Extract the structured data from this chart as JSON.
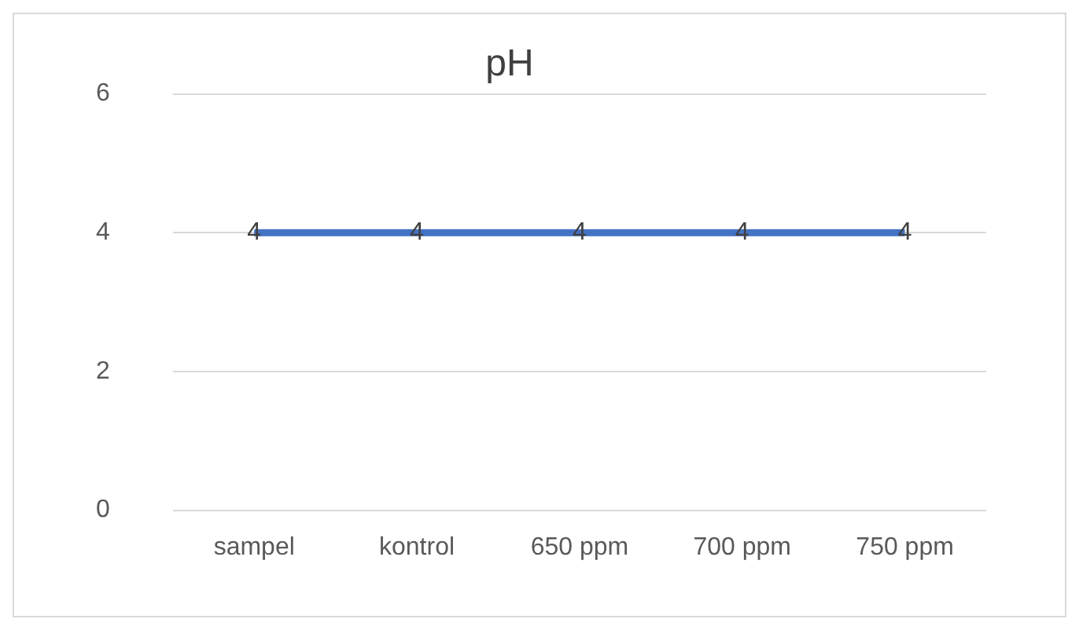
{
  "chart_data": {
    "type": "line",
    "title": "pH",
    "categories": [
      "sampel",
      "kontrol",
      "650 ppm",
      "700 ppm",
      "750 ppm"
    ],
    "series": [
      {
        "color": "#4472c4",
        "values": [
          4,
          4,
          4,
          4,
          4
        ]
      }
    ],
    "ylim": [
      0,
      6
    ],
    "yticks": [
      0,
      2,
      4,
      6
    ],
    "grid": "y",
    "legend": false,
    "marker": "none",
    "line_style": "solid",
    "data_labels": true
  }
}
